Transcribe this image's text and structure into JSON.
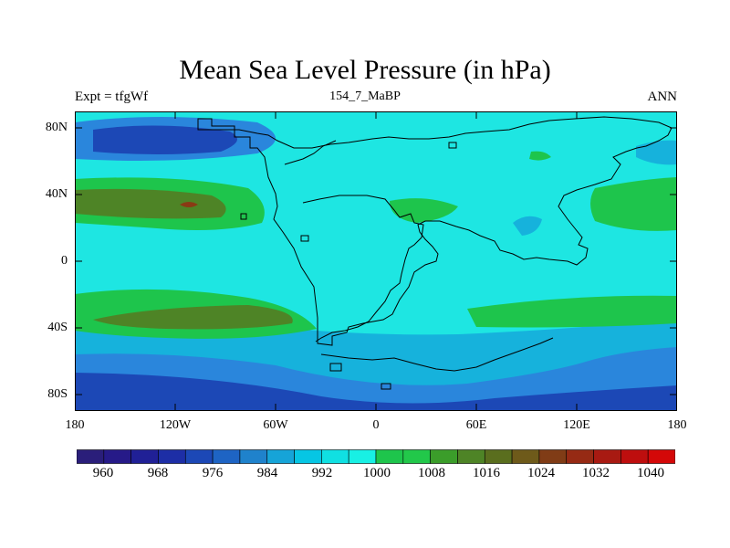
{
  "title": "Mean Sea Level Pressure (in hPa)",
  "left_label": "Expt = tfgWf",
  "center_label": "154_7_MaBP",
  "right_label": "ANN",
  "lat_ticks": [
    "80N",
    "40N",
    "0",
    "40S",
    "80S"
  ],
  "lon_ticks": [
    "180",
    "120W",
    "60W",
    "0",
    "60E",
    "120E",
    "180"
  ],
  "colorbar": {
    "labels": [
      "960",
      "968",
      "976",
      "984",
      "992",
      "1000",
      "1008",
      "1016",
      "1024",
      "1032",
      "1040"
    ],
    "colors": [
      "#2a1e7a",
      "#261a88",
      "#202096",
      "#1d2ea6",
      "#1c48b6",
      "#1e64c4",
      "#1f82cc",
      "#16a4d8",
      "#06c6e4",
      "#10e0e2",
      "#18f0e4",
      "#1ec54c",
      "#22c84a",
      "#3b9d2a",
      "#4e8426",
      "#5a6e1e",
      "#6e5a1a",
      "#803c16",
      "#962a14",
      "#a81a12",
      "#be0e0e",
      "#d40808"
    ]
  },
  "colors": {
    "deep_low": "#1c48b6",
    "low": "#2a86dc",
    "mid_low": "#16b2dc",
    "base": "#1ee6e2",
    "high": "#1ec54c",
    "very_high": "#4e8426",
    "peak": "#8a3a14"
  }
}
